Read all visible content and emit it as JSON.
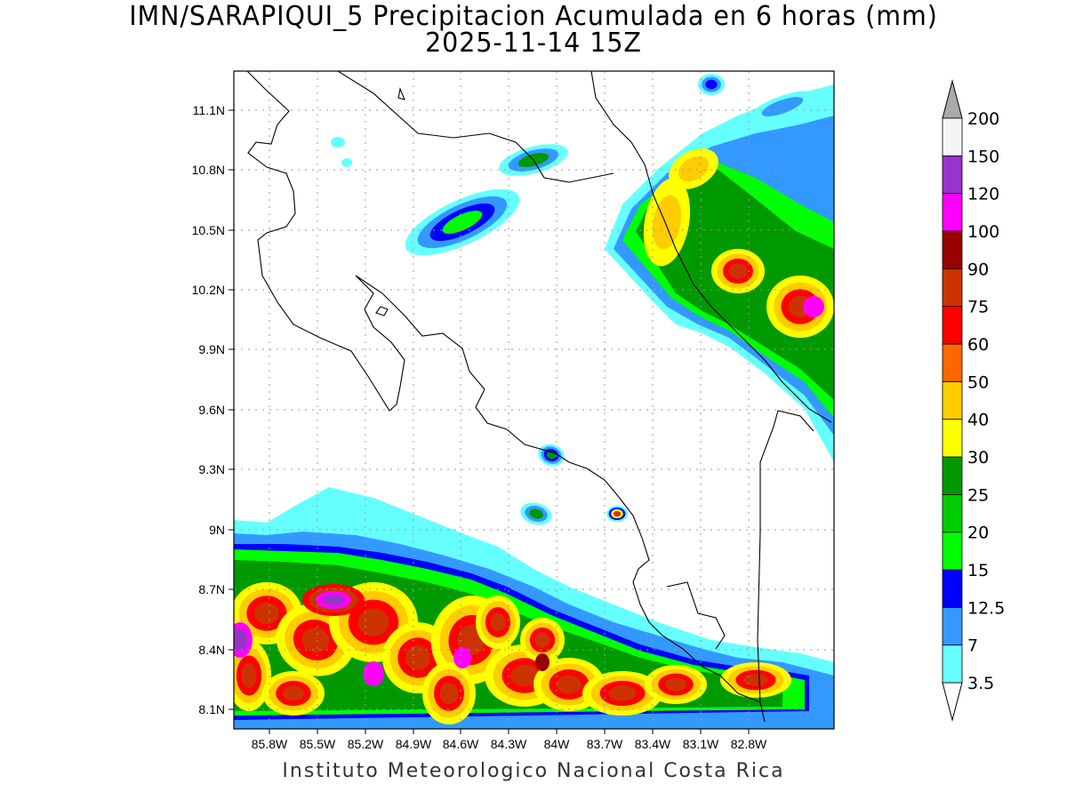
{
  "header": {
    "title_line1": "IMN/SARAPIQUI_5 Precipitacion Acumulada en 6 horas (mm)",
    "title_line2": "2025-11-14 15Z"
  },
  "footer": {
    "credit": "Instituto Meteorologico Nacional Costa Rica"
  },
  "map": {
    "lat_labels": [
      "11.1N",
      "10.8N",
      "10.5N",
      "10.2N",
      "9.9N",
      "9.6N",
      "9.3N",
      "9N",
      "8.7N",
      "8.4N",
      "8.1N"
    ],
    "lon_labels": [
      "85.8W",
      "85.5W",
      "85.2W",
      "84.9W",
      "84.6W",
      "84.3W",
      "84W",
      "83.7W",
      "83.4W",
      "83.1W",
      "82.8W"
    ],
    "background_color": "#ffffff",
    "grid": true
  },
  "legend": {
    "levels": [
      {
        "label": "3.5",
        "color": "#66ffff"
      },
      {
        "label": "7",
        "color": "#3399ff"
      },
      {
        "label": "12.5",
        "color": "#0000ff"
      },
      {
        "label": "15",
        "color": "#00ff00"
      },
      {
        "label": "20",
        "color": "#00cc00"
      },
      {
        "label": "25",
        "color": "#009900"
      },
      {
        "label": "30",
        "color": "#ffff00"
      },
      {
        "label": "40",
        "color": "#ffcc00"
      },
      {
        "label": "50",
        "color": "#ff6600"
      },
      {
        "label": "60",
        "color": "#ff0000"
      },
      {
        "label": "75",
        "color": "#cc3300"
      },
      {
        "label": "90",
        "color": "#990000"
      },
      {
        "label": "100",
        "color": "#ff00ff"
      },
      {
        "label": "120",
        "color": "#9933cc"
      },
      {
        "label": "150",
        "color": "#f5f5f5"
      },
      {
        "label": "200",
        "color": "#aaaaaa"
      }
    ]
  },
  "palette": {
    "c35": "#66ffff",
    "c7": "#3399ff",
    "c125": "#0000ff",
    "c15": "#00ff00",
    "c20": "#00cc00",
    "c25": "#009900",
    "c30": "#ffff00",
    "c40": "#ffcc00",
    "c50": "#ff6600",
    "c60": "#ff0000",
    "c75": "#cc3300",
    "c90": "#990000",
    "c100": "#ff00ff",
    "c120": "#9933cc"
  }
}
